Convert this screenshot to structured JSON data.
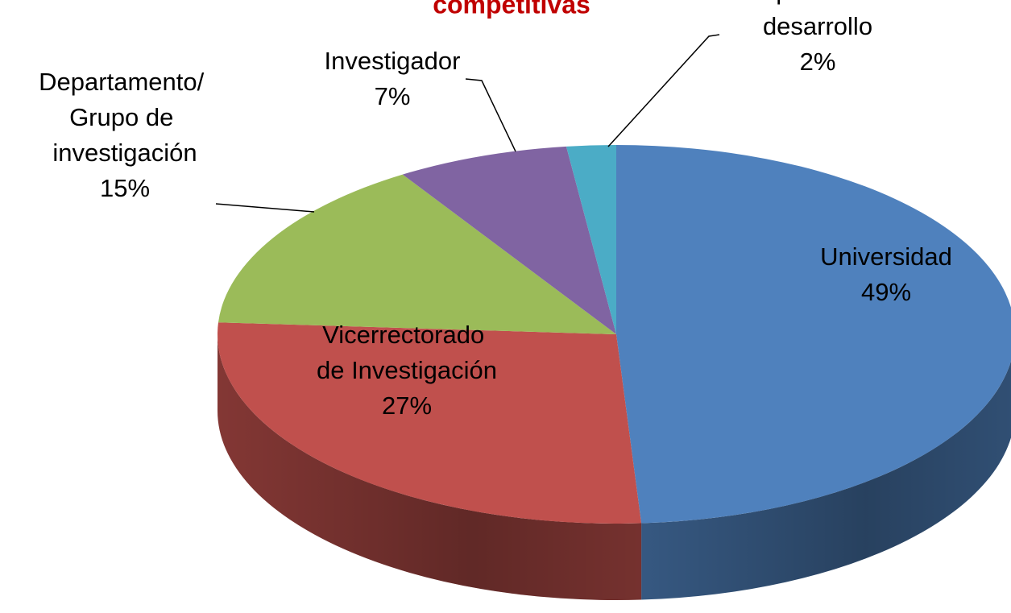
{
  "chart_data": {
    "type": "pie",
    "title": "competitivas",
    "categories": [
      "Universidad",
      "Vicerrectorado de Investigación",
      "Departamento/ Grupo de investigación",
      "Investigador",
      "Cooperación al desarrollo"
    ],
    "values": [
      49,
      27,
      15,
      7,
      2
    ],
    "value_labels": [
      "49%",
      "27%",
      "15%",
      "7%",
      "2%"
    ],
    "colors": [
      "#4f81bd",
      "#c0504d",
      "#9bbb59",
      "#8064a2",
      "#4bacc6"
    ]
  }
}
